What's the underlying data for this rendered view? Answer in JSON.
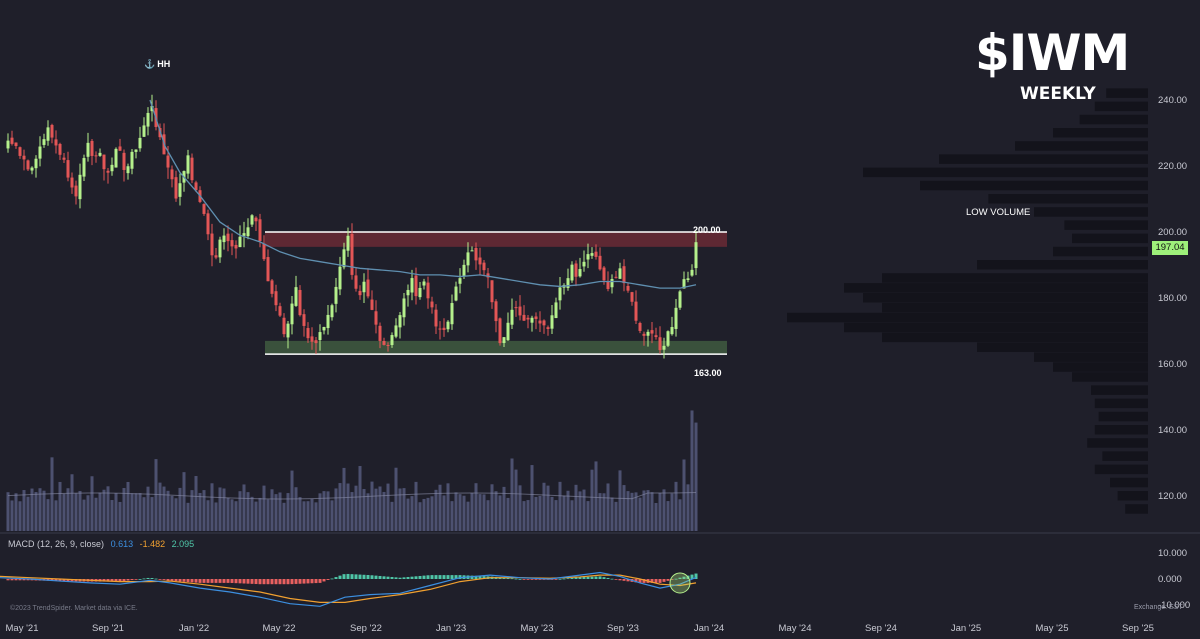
{
  "header": {
    "ticker": "$IWM",
    "period": "WEEKLY"
  },
  "annotations": {
    "hh": "HH",
    "hh_icon": "anchor-icon",
    "low_volume": "LOW VOLUME",
    "resistance_label": "200.00",
    "support_label": "163.00"
  },
  "current_price": "197.04",
  "macd_legend": {
    "name": "MACD (12, 26, 9, close)",
    "macd": "0.613",
    "signal": "-1.482",
    "hist": "2.095"
  },
  "footer": {
    "credit": "©2023 TrendSpider. Market data via ICE.",
    "exchange": "Exchange: EST"
  },
  "colors": {
    "background": "#1f1f2a",
    "up": "#b5f08c",
    "down": "#e35656",
    "ma": "#5f8fb0",
    "volume": "#4d5170",
    "macd_line": "#3c8fe0",
    "signal_line": "#f0a030",
    "hist_up": "#4fc7a8",
    "hist_down": "#e86060",
    "resistance_zone": "#6a2a35",
    "support_zone": "#3f5a40"
  },
  "chart_data": {
    "type": "candlestick",
    "x_ticks": [
      "May '21",
      "Sep '21",
      "Jan '22",
      "May '22",
      "Sep '22",
      "Jan '23",
      "May '23",
      "Sep '23",
      "Jan '24",
      "May '24",
      "Sep '24",
      "Jan '25",
      "May '25",
      "Sep '25"
    ],
    "y_ticks": [
      "240.00",
      "220.00",
      "200.00",
      "180.00",
      "160.00",
      "140.00",
      "120.00"
    ],
    "ylim": [
      113,
      245
    ],
    "macd_y_ticks": [
      "10.000",
      "0.000",
      "-10.000"
    ],
    "macd_ylim": [
      -13,
      12
    ],
    "levels": [
      {
        "value": 200,
        "zone": [
          195.5,
          200
        ]
      },
      {
        "value": 163,
        "zone": [
          163,
          167
        ]
      }
    ],
    "close_path": [
      [
        0,
        225
      ],
      [
        10,
        228
      ],
      [
        20,
        224
      ],
      [
        30,
        219
      ],
      [
        40,
        226
      ],
      [
        48,
        231
      ],
      [
        55,
        227
      ],
      [
        62,
        223
      ],
      [
        70,
        216
      ],
      [
        76,
        212
      ],
      [
        82,
        219
      ],
      [
        88,
        226
      ],
      [
        94,
        222
      ],
      [
        100,
        225
      ],
      [
        106,
        216
      ],
      [
        112,
        221
      ],
      [
        118,
        226
      ],
      [
        125,
        219
      ],
      [
        132,
        224
      ],
      [
        140,
        228
      ],
      [
        146,
        233
      ],
      [
        150,
        241
      ],
      [
        154,
        235
      ],
      [
        158,
        230
      ],
      [
        164,
        224
      ],
      [
        170,
        218
      ],
      [
        176,
        210
      ],
      [
        182,
        216
      ],
      [
        188,
        222
      ],
      [
        192,
        216
      ],
      [
        198,
        212
      ],
      [
        204,
        205
      ],
      [
        210,
        198
      ],
      [
        214,
        190
      ],
      [
        218,
        195
      ],
      [
        224,
        200
      ],
      [
        230,
        197
      ],
      [
        236,
        194
      ],
      [
        242,
        200
      ],
      [
        248,
        202
      ],
      [
        254,
        206
      ],
      [
        258,
        199
      ],
      [
        262,
        194
      ],
      [
        268,
        186
      ],
      [
        274,
        180
      ],
      [
        280,
        174
      ],
      [
        286,
        168
      ],
      [
        290,
        176
      ],
      [
        296,
        184
      ],
      [
        300,
        174
      ],
      [
        306,
        170
      ],
      [
        312,
        166
      ],
      [
        318,
        168
      ],
      [
        324,
        172
      ],
      [
        330,
        176
      ],
      [
        336,
        183
      ],
      [
        342,
        192
      ],
      [
        348,
        198
      ],
      [
        352,
        188
      ],
      [
        358,
        179
      ],
      [
        364,
        185
      ],
      [
        370,
        180
      ],
      [
        376,
        172
      ],
      [
        382,
        166
      ],
      [
        388,
        165
      ],
      [
        394,
        170
      ],
      [
        400,
        176
      ],
      [
        406,
        182
      ],
      [
        412,
        185
      ],
      [
        418,
        180
      ],
      [
        424,
        186
      ],
      [
        430,
        178
      ],
      [
        436,
        172
      ],
      [
        442,
        170
      ],
      [
        448,
        174
      ],
      [
        454,
        180
      ],
      [
        460,
        187
      ],
      [
        466,
        192
      ],
      [
        470,
        197
      ],
      [
        476,
        192
      ],
      [
        482,
        189
      ],
      [
        488,
        185
      ],
      [
        494,
        175
      ],
      [
        500,
        167
      ],
      [
        506,
        170
      ],
      [
        512,
        176
      ],
      [
        518,
        177
      ],
      [
        524,
        172
      ],
      [
        530,
        176
      ],
      [
        536,
        173
      ],
      [
        542,
        171
      ],
      [
        548,
        170
      ],
      [
        554,
        177
      ],
      [
        560,
        183
      ],
      [
        566,
        186
      ],
      [
        572,
        189
      ],
      [
        578,
        187
      ],
      [
        582,
        189
      ],
      [
        586,
        193
      ],
      [
        590,
        196
      ],
      [
        594,
        193
      ],
      [
        598,
        190
      ],
      [
        602,
        186
      ],
      [
        608,
        182
      ],
      [
        614,
        186
      ],
      [
        620,
        188
      ],
      [
        626,
        184
      ],
      [
        632,
        178
      ],
      [
        638,
        172
      ],
      [
        644,
        169
      ],
      [
        650,
        170
      ],
      [
        656,
        167
      ],
      [
        660,
        163
      ],
      [
        664,
        165
      ],
      [
        668,
        170
      ],
      [
        672,
        172
      ],
      [
        676,
        178
      ],
      [
        680,
        182
      ],
      [
        684,
        185
      ],
      [
        688,
        186
      ],
      [
        692,
        188
      ],
      [
        696,
        197
      ]
    ],
    "ma_path": [
      [
        150,
        240
      ],
      [
        165,
        226
      ],
      [
        180,
        218
      ],
      [
        200,
        211
      ],
      [
        220,
        203
      ],
      [
        240,
        199
      ],
      [
        260,
        197
      ],
      [
        280,
        194
      ],
      [
        300,
        192
      ],
      [
        320,
        191
      ],
      [
        340,
        190
      ],
      [
        360,
        189
      ],
      [
        380,
        188.5
      ],
      [
        400,
        188
      ],
      [
        420,
        187
      ],
      [
        440,
        187
      ],
      [
        460,
        186.5
      ],
      [
        480,
        187
      ],
      [
        500,
        186
      ],
      [
        520,
        185
      ],
      [
        540,
        184
      ],
      [
        560,
        183.5
      ],
      [
        580,
        184
      ],
      [
        600,
        185
      ],
      [
        620,
        185
      ],
      [
        640,
        184
      ],
      [
        660,
        183
      ],
      [
        680,
        183
      ],
      [
        696,
        184
      ]
    ],
    "volume_profile": [
      {
        "price": 242,
        "len": 0.11
      },
      {
        "price": 238,
        "len": 0.14
      },
      {
        "price": 234,
        "len": 0.18
      },
      {
        "price": 230,
        "len": 0.25
      },
      {
        "price": 226,
        "len": 0.35
      },
      {
        "price": 222,
        "len": 0.55
      },
      {
        "price": 218,
        "len": 0.75
      },
      {
        "price": 214,
        "len": 0.6
      },
      {
        "price": 210,
        "len": 0.42
      },
      {
        "price": 206,
        "len": 0.3
      },
      {
        "price": 202,
        "len": 0.22
      },
      {
        "price": 198,
        "len": 0.2
      },
      {
        "price": 194,
        "len": 0.25
      },
      {
        "price": 190,
        "len": 0.45
      },
      {
        "price": 186,
        "len": 0.7
      },
      {
        "price": 183,
        "len": 0.8
      },
      {
        "price": 180,
        "len": 0.75
      },
      {
        "price": 177,
        "len": 0.7
      },
      {
        "price": 174,
        "len": 0.95
      },
      {
        "price": 171,
        "len": 0.8
      },
      {
        "price": 168,
        "len": 0.7
      },
      {
        "price": 165,
        "len": 0.45
      },
      {
        "price": 162,
        "len": 0.3
      },
      {
        "price": 159,
        "len": 0.25
      },
      {
        "price": 156,
        "len": 0.2
      },
      {
        "price": 152,
        "len": 0.15
      },
      {
        "price": 148,
        "len": 0.14
      },
      {
        "price": 144,
        "len": 0.13
      },
      {
        "price": 140,
        "len": 0.14
      },
      {
        "price": 136,
        "len": 0.16
      },
      {
        "price": 132,
        "len": 0.12
      },
      {
        "price": 128,
        "len": 0.14
      },
      {
        "price": 124,
        "len": 0.1
      },
      {
        "price": 120,
        "len": 0.08
      },
      {
        "price": 116,
        "len": 0.06
      }
    ],
    "macd_path": [
      [
        0,
        0.5
      ],
      [
        30,
        0
      ],
      [
        60,
        -0.8
      ],
      [
        90,
        -1.5
      ],
      [
        120,
        -2
      ],
      [
        150,
        -0.5
      ],
      [
        170,
        -1.5
      ],
      [
        200,
        -3.5
      ],
      [
        230,
        -5
      ],
      [
        260,
        -7
      ],
      [
        290,
        -9.5
      ],
      [
        320,
        -10.5
      ],
      [
        345,
        -7
      ],
      [
        370,
        -6
      ],
      [
        400,
        -5.5
      ],
      [
        430,
        -2.5
      ],
      [
        460,
        0.5
      ],
      [
        490,
        1.5
      ],
      [
        520,
        0.5
      ],
      [
        550,
        0
      ],
      [
        580,
        1.5
      ],
      [
        600,
        2.5
      ],
      [
        620,
        1
      ],
      [
        640,
        -1.5
      ],
      [
        660,
        -3.5
      ],
      [
        680,
        -2
      ],
      [
        696,
        0.6
      ]
    ],
    "signal_path": [
      [
        0,
        1
      ],
      [
        30,
        0.5
      ],
      [
        60,
        0
      ],
      [
        90,
        -0.5
      ],
      [
        120,
        -1
      ],
      [
        150,
        -1
      ],
      [
        170,
        -0.8
      ],
      [
        200,
        -2
      ],
      [
        230,
        -3.5
      ],
      [
        260,
        -5
      ],
      [
        290,
        -7.5
      ],
      [
        320,
        -9
      ],
      [
        345,
        -9
      ],
      [
        370,
        -7.5
      ],
      [
        400,
        -6
      ],
      [
        430,
        -4
      ],
      [
        460,
        -1
      ],
      [
        490,
        0.5
      ],
      [
        520,
        0.5
      ],
      [
        550,
        0.3
      ],
      [
        580,
        0.8
      ],
      [
        600,
        1.5
      ],
      [
        620,
        1.5
      ],
      [
        640,
        0
      ],
      [
        660,
        -2
      ],
      [
        680,
        -2.5
      ],
      [
        696,
        -1.5
      ]
    ]
  }
}
